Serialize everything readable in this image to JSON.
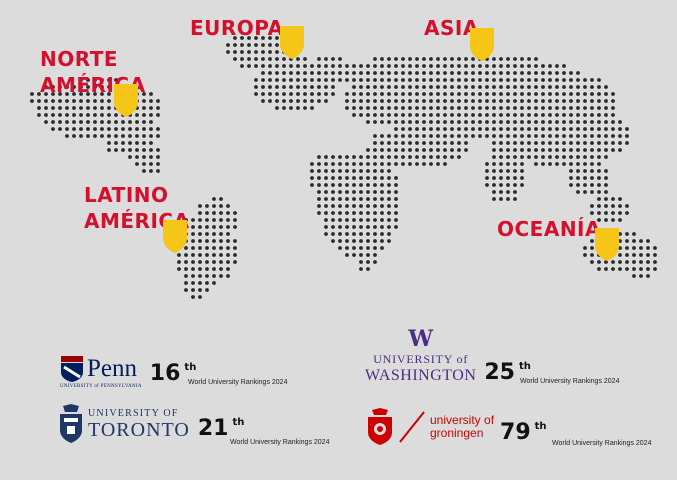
{
  "colors": {
    "background": "#dcdcdc",
    "dots": "#2a2a2a",
    "region_text": "#d3112e",
    "shield": "#f5c518",
    "penn_blue": "#011f5b",
    "uw_purple": "#4b2e83",
    "toronto_blue": "#1e3765",
    "groningen_red": "#cc0000"
  },
  "regions": {
    "europa": "EUROPA",
    "asia": "ASIA",
    "norte_america": "NORTE\nAMÉRICA",
    "latino_america": "LATINO\nAMÉRICA",
    "oceania": "OCEANÍA"
  },
  "universities": {
    "penn": {
      "name": "Penn",
      "subtitle": "UNIVERSITY of PENNSYLVANIA",
      "rank": "16",
      "rank_suffix": "th",
      "ranking_label": "World University Rankings 2024",
      "icon": "penn-shield-icon"
    },
    "washington": {
      "w_mark": "W",
      "line1": "UNIVERSITY of",
      "line2": "WASHINGTON",
      "rank": "25",
      "rank_suffix": "th",
      "ranking_label": "World University Rankings 2024",
      "icon": "uw-w-logo-icon"
    },
    "toronto": {
      "line1": "UNIVERSITY OF",
      "line2": "TORONTO",
      "rank": "21",
      "rank_suffix": "th",
      "ranking_label": "World University Rankings 2024",
      "icon": "toronto-crest-icon"
    },
    "groningen": {
      "line1": "university of",
      "line2": "groningen",
      "rank": "79",
      "rank_suffix": "th",
      "ranking_label": "World University Rankings 2024",
      "icon": "groningen-crest-icon"
    }
  }
}
